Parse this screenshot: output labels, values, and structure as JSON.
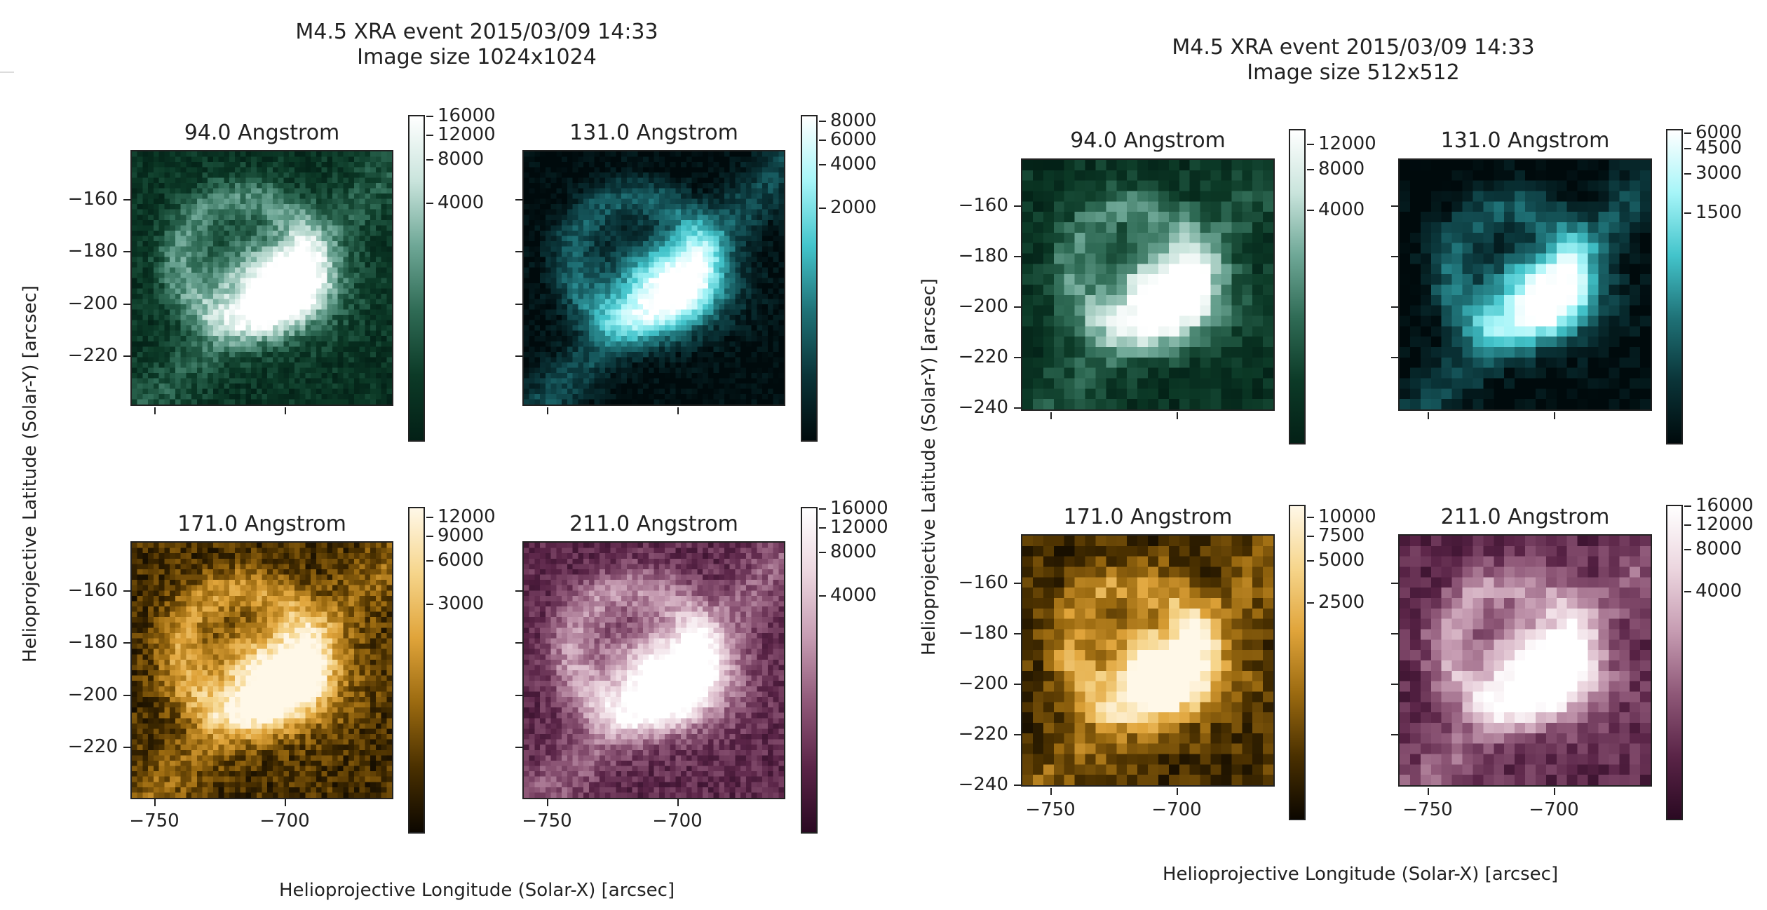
{
  "colors": {
    "aia94": [
      "#032016",
      "#0c3a27",
      "#2f6b55",
      "#6ea796",
      "#c9e4dc",
      "#ffffff"
    ],
    "aia131": [
      "#000a0c",
      "#0a3438",
      "#1f7277",
      "#43c4cb",
      "#a6f5f8",
      "#ffffff"
    ],
    "aia171": [
      "#0c0700",
      "#4a3000",
      "#9b6a10",
      "#e0a43a",
      "#f6d58b",
      "#fff8e8"
    ],
    "aia211": [
      "#2a0922",
      "#5a2447",
      "#8f5878",
      "#c69cb2",
      "#ecd6df",
      "#ffffff"
    ]
  },
  "chart_data": [
    {
      "type": "heatmap",
      "title_line1": "M4.5 XRA event 2015/03/09 14:33",
      "title_line2": "Image size 1024x1024",
      "xlabel": "Helioprojective Longitude (Solar-X) [arcsec]",
      "ylabel": "Helioprojective Latitude (Solar-Y) [arcsec]",
      "xlim": [
        -765,
        -665
      ],
      "ylim": [
        -240,
        -141
      ],
      "xticks": [
        "−750",
        "−700"
      ],
      "yticks": [
        "−160",
        "−180",
        "−200",
        "−220"
      ],
      "panels": [
        {
          "title": "94.0 Angstrom",
          "cmap": "aia94",
          "colorbar_ticks": [
            "16000",
            "12000",
            "8000",
            "4000"
          ],
          "colorbar_max": 16000
        },
        {
          "title": "131.0 Angstrom",
          "cmap": "aia131",
          "colorbar_ticks": [
            "8000",
            "6000",
            "4000",
            "2000"
          ],
          "colorbar_max": 8000
        },
        {
          "title": "171.0 Angstrom",
          "cmap": "aia171",
          "colorbar_ticks": [
            "12000",
            "9000",
            "6000",
            "3000"
          ],
          "colorbar_max": 12000
        },
        {
          "title": "211.0 Angstrom",
          "cmap": "aia211",
          "colorbar_ticks": [
            "16000",
            "12000",
            "8000",
            "4000"
          ],
          "colorbar_max": 16000
        }
      ]
    },
    {
      "type": "heatmap",
      "title_line1": "M4.5 XRA event 2015/03/09 14:33",
      "title_line2": "Image size 512x512",
      "xlabel": "Helioprojective Longitude (Solar-X) [arcsec]",
      "ylabel": "Helioprojective Latitude (Solar-Y) [arcsec]",
      "xlim": [
        -765,
        -665
      ],
      "ylim": [
        -241,
        -141
      ],
      "xticks": [
        "−750",
        "−700"
      ],
      "yticks": [
        "−160",
        "−180",
        "−200",
        "−220",
        "−240"
      ],
      "panels": [
        {
          "title": "94.0 Angstrom",
          "cmap": "aia94",
          "colorbar_ticks": [
            "12000",
            "8000",
            "4000"
          ],
          "colorbar_max": 14000
        },
        {
          "title": "131.0 Angstrom",
          "cmap": "aia131",
          "colorbar_ticks": [
            "6000",
            "4500",
            "3000",
            "1500"
          ],
          "colorbar_max": 6500
        },
        {
          "title": "171.0 Angstrom",
          "cmap": "aia171",
          "colorbar_ticks": [
            "10000",
            "7500",
            "5000",
            "2500"
          ],
          "colorbar_max": 11000
        },
        {
          "title": "211.0 Angstrom",
          "cmap": "aia211",
          "colorbar_ticks": [
            "16000",
            "12000",
            "8000",
            "4000"
          ],
          "colorbar_max": 16500
        }
      ]
    }
  ]
}
